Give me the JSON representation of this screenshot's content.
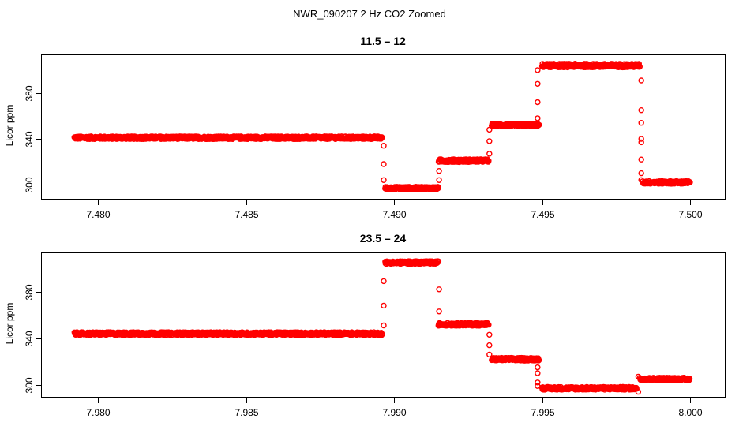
{
  "figure_title": "NWR_090207  2 Hz CO2 Zoomed",
  "colors": {
    "points": "#ff0000",
    "frame": "#000000",
    "background": "#ffffff"
  },
  "chart_data": [
    {
      "type": "scatter",
      "title": "11.5 – 12",
      "xlabel": "",
      "ylabel": "Licor ppm",
      "xlim": [
        7.4781,
        7.5012
      ],
      "ylim": [
        287,
        413
      ],
      "xticks": [
        7.48,
        7.485,
        7.49,
        7.495,
        7.5
      ],
      "xtick_labels": [
        "7.480",
        "7.485",
        "7.490",
        "7.495",
        "7.500"
      ],
      "yticks": [
        300,
        340,
        380
      ],
      "ytick_labels": [
        "300",
        "340",
        "380"
      ],
      "grid": false,
      "legend": "none",
      "series": [
        {
          "segments": [
            {
              "x0": 7.4792,
              "x1": 7.4896,
              "y": 341,
              "noise": 1.2
            },
            {
              "x0": 7.4897,
              "x1": 7.4915,
              "y": 297,
              "noise": 1.2
            },
            {
              "x0": 7.4915,
              "x1": 7.4932,
              "y": 321,
              "noise": 1.2
            },
            {
              "x0": 7.4933,
              "x1": 7.4949,
              "y": 352,
              "noise": 1.2
            },
            {
              "x0": 7.495,
              "x1": 7.4983,
              "y": 404,
              "noise": 1.6
            },
            {
              "x0": 7.4984,
              "x1": 7.5,
              "y": 302,
              "noise": 1.2
            }
          ],
          "transitions": [
            {
              "x": 7.48965,
              "y": [
                334,
                318,
                304
              ]
            },
            {
              "x": 7.49152,
              "y": [
                304,
                312
              ]
            },
            {
              "x": 7.49322,
              "y": [
                327,
                338,
                348
              ]
            },
            {
              "x": 7.49485,
              "y": [
                358,
                372,
                388,
                400
              ]
            },
            {
              "x": 7.49835,
              "y": [
                391,
                365,
                354,
                340,
                337,
                322,
                310,
                304
              ]
            }
          ]
        }
      ]
    },
    {
      "type": "scatter",
      "title": "23.5 – 24",
      "xlabel": "",
      "ylabel": "Licor ppm",
      "xlim": [
        7.9781,
        8.0012
      ],
      "ylim": [
        289,
        413
      ],
      "xticks": [
        7.98,
        7.985,
        7.99,
        7.995,
        8.0
      ],
      "xtick_labels": [
        "7.980",
        "7.985",
        "7.990",
        "7.995",
        "8.000"
      ],
      "yticks": [
        300,
        340,
        380
      ],
      "ytick_labels": [
        "300",
        "340",
        "380"
      ],
      "grid": false,
      "legend": "none",
      "series": [
        {
          "segments": [
            {
              "x0": 7.9792,
              "x1": 7.9896,
              "y": 344,
              "noise": 1.2
            },
            {
              "x0": 7.9897,
              "x1": 7.9915,
              "y": 405,
              "noise": 1.2
            },
            {
              "x0": 7.9915,
              "x1": 7.9932,
              "y": 352,
              "noise": 1.2
            },
            {
              "x0": 7.9933,
              "x1": 7.9949,
              "y": 322,
              "noise": 1.2
            },
            {
              "x0": 7.995,
              "x1": 7.9982,
              "y": 297,
              "noise": 1.2
            },
            {
              "x0": 7.9983,
              "x1": 8.0,
              "y": 305,
              "noise": 1.2
            }
          ],
          "transitions": [
            {
              "x": 7.98965,
              "y": [
                351,
                368,
                389
              ]
            },
            {
              "x": 7.99152,
              "y": [
                382,
                363
              ]
            },
            {
              "x": 7.99322,
              "y": [
                343,
                334,
                326
              ]
            },
            {
              "x": 7.99485,
              "y": [
                315,
                310,
                302,
                299
              ]
            },
            {
              "x": 7.99825,
              "y": [
                294,
                307
              ]
            }
          ]
        }
      ]
    }
  ]
}
